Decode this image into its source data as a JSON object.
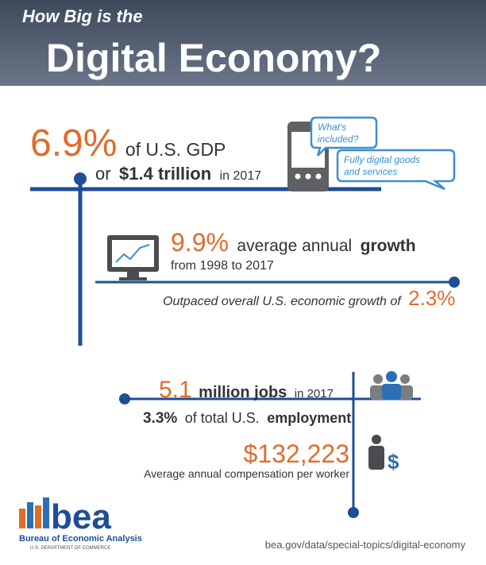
{
  "header": {
    "kicker": "How Big is the",
    "title": "Digital Economy?"
  },
  "gdp": {
    "share": "6.9%",
    "share_label": "of U.S. GDP",
    "connector": "or",
    "amount": "$1.4 trillion",
    "year": "in 2017",
    "bubble_question": [
      "What's",
      "included?"
    ],
    "bubble_answer": [
      "Fully digital goods",
      "and services"
    ]
  },
  "growth": {
    "rate": "9.9%",
    "label": "average annual",
    "label_bold": "growth",
    "period": "from 1998 to 2017",
    "comparison": "Outpaced overall U.S. economic growth of",
    "comparison_rate": "2.3%"
  },
  "jobs": {
    "count": "5.1",
    "unit": "million jobs",
    "year": "in 2017",
    "share": "3.3%",
    "share_label": "of total U.S.",
    "share_label_bold": "employment",
    "compensation": "$132,223",
    "compensation_label": "Average annual compensation per worker"
  },
  "footer": {
    "logo": "bea",
    "agency": "Bureau of Economic Analysis",
    "department": "U.S. DEPARTMENT OF COMMERCE",
    "url": "bea.gov/data/special-topics/digital-economy"
  }
}
